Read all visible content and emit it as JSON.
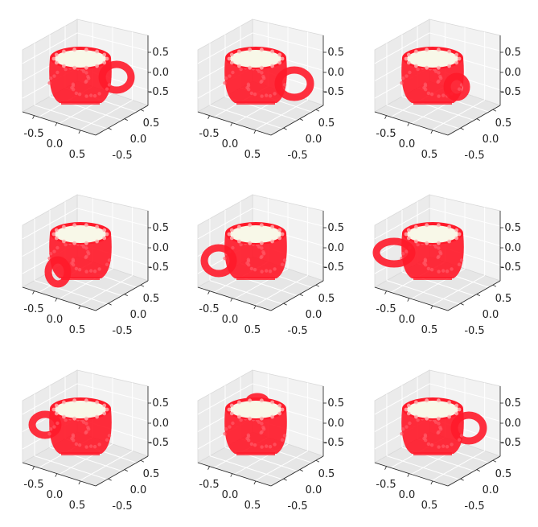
{
  "chart_data": {
    "type": "scatter",
    "projection": "3d",
    "grid": "on",
    "layout": {
      "rows": 3,
      "cols": 3
    },
    "marker_colors": {
      "body": "#ff1a2a",
      "rim": "#f8f8e8"
    },
    "subplots": [
      {
        "handle_side": "right-back",
        "axes": {
          "x_ticks": [
            "-0.5",
            "0.0",
            "0.5"
          ],
          "y_ticks": [
            "0.5",
            "0.0",
            "-0.5"
          ],
          "z_ticks": [
            "0.5",
            "0.0",
            "-0.5"
          ],
          "xlim": [
            -0.8,
            0.8
          ],
          "ylim": [
            -0.8,
            0.8
          ],
          "zlim": [
            -0.8,
            0.8
          ]
        }
      },
      {
        "handle_side": "right",
        "axes": {
          "x_ticks": [
            "-0.5",
            "0.0",
            "0.5"
          ],
          "y_ticks": [
            "0.5",
            "0.0",
            "-0.5"
          ],
          "z_ticks": [
            "0.5",
            "0.0",
            "-0.5"
          ],
          "xlim": [
            -0.8,
            0.8
          ],
          "ylim": [
            -0.8,
            0.8
          ],
          "zlim": [
            -0.8,
            0.8
          ]
        }
      },
      {
        "handle_side": "right-front",
        "axes": {
          "x_ticks": [
            "-0.5",
            "0.0",
            "0.5"
          ],
          "y_ticks": [
            "0.5",
            "0.0",
            "-0.5"
          ],
          "z_ticks": [
            "0.5",
            "0.0",
            "-0.5"
          ],
          "xlim": [
            -0.8,
            0.8
          ],
          "ylim": [
            -0.8,
            0.8
          ],
          "zlim": [
            -0.8,
            0.8
          ]
        }
      },
      {
        "handle_side": "front",
        "axes": {
          "x_ticks": [
            "-0.5",
            "0.0",
            "0.5"
          ],
          "y_ticks": [
            "0.5",
            "0.0",
            "-0.5"
          ],
          "z_ticks": [
            "0.5",
            "0.0",
            "-0.5"
          ],
          "xlim": [
            -0.8,
            0.8
          ],
          "ylim": [
            -0.8,
            0.8
          ],
          "zlim": [
            -0.8,
            0.8
          ]
        }
      },
      {
        "handle_side": "left-front",
        "axes": {
          "x_ticks": [
            "-0.5",
            "0.0",
            "0.5"
          ],
          "y_ticks": [
            "0.5",
            "0.0",
            "-0.5"
          ],
          "z_ticks": [
            "0.5",
            "0.0",
            "-0.5"
          ],
          "xlim": [
            -0.8,
            0.8
          ],
          "ylim": [
            -0.8,
            0.8
          ],
          "zlim": [
            -0.8,
            0.8
          ]
        }
      },
      {
        "handle_side": "left",
        "axes": {
          "x_ticks": [
            "-0.5",
            "0.0",
            "0.5"
          ],
          "y_ticks": [
            "0.5",
            "0.0",
            "-0.5"
          ],
          "z_ticks": [
            "0.5",
            "0.0",
            "-0.5"
          ],
          "xlim": [
            -0.8,
            0.8
          ],
          "ylim": [
            -0.8,
            0.8
          ],
          "zlim": [
            -0.8,
            0.8
          ]
        }
      },
      {
        "handle_side": "left-back",
        "axes": {
          "x_ticks": [
            "-0.5",
            "0.0",
            "0.5"
          ],
          "y_ticks": [
            "0.5",
            "0.0",
            "-0.5"
          ],
          "z_ticks": [
            "0.5",
            "0.0",
            "-0.5"
          ],
          "xlim": [
            -0.8,
            0.8
          ],
          "ylim": [
            -0.8,
            0.8
          ],
          "zlim": [
            -0.8,
            0.8
          ]
        }
      },
      {
        "handle_side": "back",
        "axes": {
          "x_ticks": [
            "-0.5",
            "0.0",
            "0.5"
          ],
          "y_ticks": [
            "0.5",
            "0.0",
            "-0.5"
          ],
          "z_ticks": [
            "0.5",
            "0.0",
            "-0.5"
          ],
          "xlim": [
            -0.8,
            0.8
          ],
          "ylim": [
            -0.8,
            0.8
          ],
          "zlim": [
            -0.8,
            0.8
          ]
        }
      },
      {
        "handle_side": "right-back",
        "axes": {
          "x_ticks": [
            "-0.5",
            "0.0",
            "0.5"
          ],
          "y_ticks": [
            "0.5",
            "0.0",
            "-0.5"
          ],
          "z_ticks": [
            "0.5",
            "0.0",
            "-0.5"
          ],
          "xlim": [
            -0.8,
            0.8
          ],
          "ylim": [
            -0.8,
            0.8
          ],
          "zlim": [
            -0.8,
            0.8
          ]
        }
      }
    ]
  }
}
